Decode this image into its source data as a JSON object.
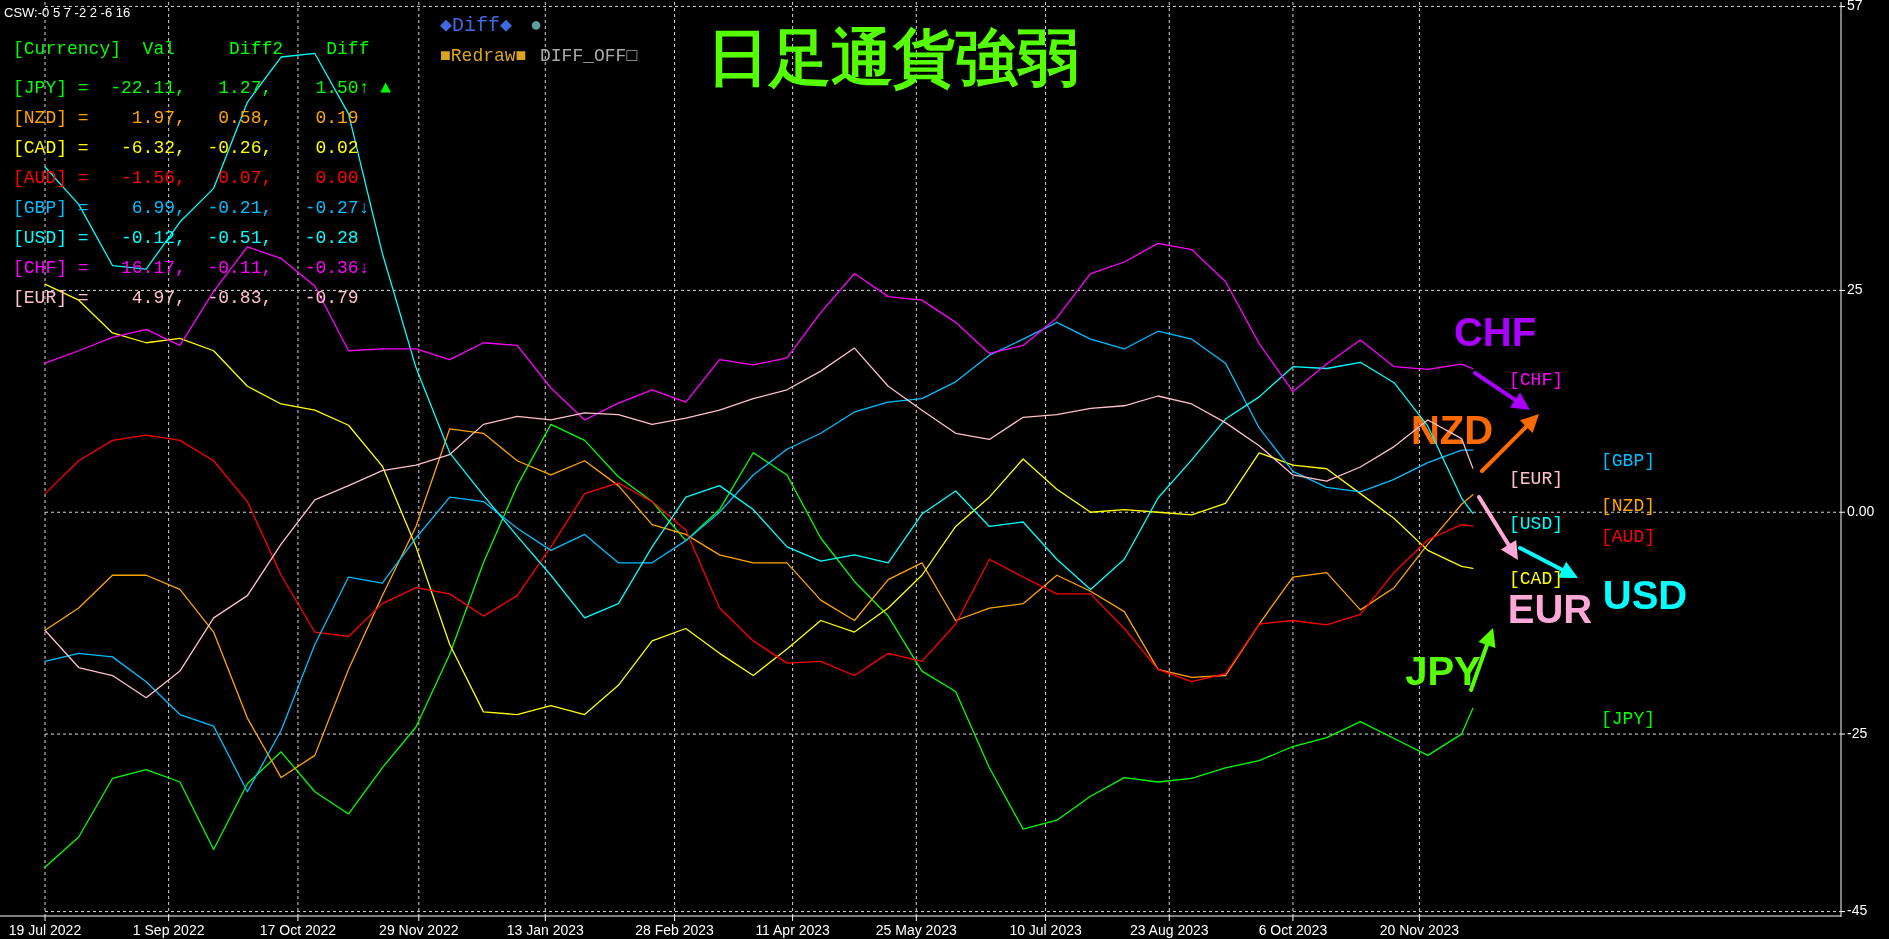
{
  "chart_data": {
    "type": "line",
    "title": "日足通貨強弱",
    "x": [
      "2022-07-19",
      "2022-07-31",
      "2022-08-12",
      "2022-08-24",
      "2022-09-05",
      "2022-09-17",
      "2022-09-29",
      "2022-10-11",
      "2022-10-23",
      "2022-11-04",
      "2022-11-16",
      "2022-11-28",
      "2022-12-10",
      "2022-12-22",
      "2023-01-03",
      "2023-01-15",
      "2023-01-27",
      "2023-02-08",
      "2023-02-20",
      "2023-03-04",
      "2023-03-16",
      "2023-03-28",
      "2023-04-09",
      "2023-04-21",
      "2023-05-03",
      "2023-05-15",
      "2023-05-27",
      "2023-06-08",
      "2023-06-20",
      "2023-07-02",
      "2023-07-14",
      "2023-07-26",
      "2023-08-07",
      "2023-08-19",
      "2023-08-31",
      "2023-09-12",
      "2023-09-24",
      "2023-10-06",
      "2023-10-18",
      "2023-10-30",
      "2023-11-11",
      "2023-11-23",
      "2023-12-05",
      "2023-12-09"
    ],
    "series": [
      {
        "name": "[JPY]",
        "color": "#00ff00",
        "values": [
          -40,
          -36.6,
          -30,
          -29,
          -30.4,
          -38,
          -30.6,
          -27,
          -31.5,
          -34,
          -28.8,
          -24.2,
          -16,
          -5.7,
          3,
          9.9,
          8.1,
          4,
          1.2,
          -3.2,
          0.3,
          6.7,
          4.2,
          -2.9,
          -7.8,
          -11.7,
          -17.9,
          -20.2,
          -28.8,
          -35.7,
          -34.7,
          -32,
          -29.9,
          -30.4,
          -30,
          -28.8,
          -28,
          -26.4,
          -25.4,
          -23.6,
          -25.5,
          -27.4,
          -25,
          -22.11
        ]
      },
      {
        "name": "[NZD]",
        "color": "#ffa500",
        "values": [
          -13.3,
          -10.8,
          -7.1,
          -7.1,
          -8.7,
          -13.5,
          -23.2,
          -29.9,
          -27.4,
          -17.7,
          -9.4,
          -1.6,
          9.4,
          8.9,
          5.8,
          4.2,
          5.8,
          3,
          -1.4,
          -2.5,
          -4.8,
          -5.7,
          -5.7,
          -9.9,
          -12.2,
          -7.6,
          -5.7,
          -12.2,
          -10.8,
          -10.3,
          -7.1,
          -8.9,
          -11.2,
          -17.7,
          -18.6,
          -18.4,
          -12.6,
          -7.3,
          -6.8,
          -11,
          -8.5,
          -3.6,
          0.9,
          1.97
        ]
      },
      {
        "name": "[CAD]",
        "color": "#ffff00",
        "values": [
          25.7,
          23.9,
          20.2,
          19.1,
          19.6,
          18.2,
          14.2,
          12.2,
          11.5,
          9.8,
          5.2,
          -3.9,
          -14.9,
          -22.5,
          -22.8,
          -21.8,
          -22.8,
          -19.5,
          -14.5,
          -13.1,
          -15.9,
          -18.4,
          -15.4,
          -12.2,
          -13.5,
          -10.8,
          -7.1,
          -1.6,
          1.7,
          6,
          2.6,
          0,
          0.3,
          0,
          -0.3,
          1,
          6.7,
          5.3,
          4.9,
          2.1,
          -0.7,
          -4.3,
          -6.1,
          -6.32
        ]
      },
      {
        "name": "[AUD]",
        "color": "#ff0000",
        "values": [
          2.1,
          5.8,
          8.1,
          8.7,
          8.1,
          5.8,
          1.2,
          -7.1,
          -13.5,
          -14,
          -10.3,
          -8.5,
          -9.2,
          -11.7,
          -9.4,
          -3.9,
          2.1,
          3.3,
          1.2,
          -2,
          -10.8,
          -14.5,
          -17,
          -16.8,
          -18.4,
          -15.9,
          -16.8,
          -12.6,
          -5.3,
          -7.3,
          -9.2,
          -9.2,
          -13.1,
          -17.7,
          -19.1,
          -18.2,
          -12.6,
          -12.2,
          -12.7,
          -11.5,
          -6.8,
          -3.1,
          -1.4,
          -1.56
        ]
      },
      {
        "name": "[GBP]",
        "color": "#00bfff",
        "values": [
          -16.8,
          -15.9,
          -16.3,
          -19.1,
          -22.8,
          -24.1,
          -31.5,
          -24.6,
          -14.9,
          -7.3,
          -8,
          -2.9,
          1.7,
          1.2,
          -1.8,
          -4.3,
          -2.5,
          -5.7,
          -5.7,
          -3.2,
          0,
          4.2,
          7.1,
          8.9,
          11.3,
          12.4,
          12.8,
          14.7,
          17.7,
          19.5,
          21.4,
          19.5,
          18.4,
          20.4,
          19.5,
          16.8,
          9.5,
          4.6,
          2.8,
          2.3,
          3.7,
          5.6,
          7,
          6.99
        ]
      },
      {
        "name": "[USD]",
        "color": "#00ffff",
        "values": [
          38.9,
          34.7,
          27.8,
          27.4,
          32.7,
          36.5,
          46.2,
          51.3,
          51.7,
          44.9,
          29.2,
          16.3,
          6.7,
          1.9,
          -2.7,
          -7.1,
          -11.9,
          -10.3,
          -3.9,
          1.7,
          3,
          0.3,
          -3.9,
          -5.5,
          -4.8,
          -5.7,
          -0.2,
          2.4,
          -1.6,
          -1.1,
          -5.3,
          -8.7,
          -5.3,
          1.6,
          5.9,
          10.5,
          13,
          16.4,
          16.2,
          16.9,
          14.6,
          9.7,
          1.6,
          -0.12
        ]
      },
      {
        "name": "[CHF]",
        "color": "#ff00ff",
        "values": [
          16.8,
          18.2,
          19.7,
          20.6,
          18.8,
          24.9,
          29.9,
          28.6,
          25.5,
          18.2,
          18.4,
          18.4,
          17.2,
          19.1,
          18.8,
          14,
          10.4,
          12.3,
          13.8,
          12.4,
          17.2,
          16.6,
          17.4,
          22.5,
          26.9,
          24.3,
          23.9,
          21.4,
          17.9,
          18.8,
          21.9,
          26.9,
          28.2,
          30.3,
          29.6,
          26,
          19,
          13.6,
          16.7,
          19.4,
          16.4,
          16.1,
          16.7,
          16.17
        ]
      },
      {
        "name": "[EUR]",
        "color": "#ffc0cb",
        "values": [
          -13.3,
          -17.5,
          -18.4,
          -20.9,
          -17.9,
          -11.9,
          -9.4,
          -3.6,
          1.4,
          3,
          4.7,
          5.3,
          6.5,
          9.9,
          10.8,
          10.4,
          11.2,
          11,
          9.9,
          10.6,
          11.5,
          12.8,
          13.8,
          15.9,
          18.5,
          14.2,
          11.5,
          8.9,
          8.2,
          10.7,
          11,
          11.7,
          12,
          13.1,
          12.2,
          10.1,
          7.5,
          4.2,
          3.5,
          5.1,
          7.4,
          10.4,
          8.3,
          4.97
        ]
      }
    ],
    "xlim": [
      "2022-07-19",
      "2024-04-18"
    ],
    "xticks": [
      {
        "value": "2022-07-19",
        "label": "19 Jul 2022"
      },
      {
        "value": "2022-09-01",
        "label": "1 Sep 2022"
      },
      {
        "value": "2022-10-17",
        "label": "17 Oct 2022"
      },
      {
        "value": "2022-11-29",
        "label": "29 Nov 2022"
      },
      {
        "value": "2023-01-13",
        "label": "13 Jan 2023"
      },
      {
        "value": "2023-02-28",
        "label": "28 Feb 2023"
      },
      {
        "value": "2023-04-11",
        "label": "11 Apr 2023"
      },
      {
        "value": "2023-05-25",
        "label": "25 May 2023"
      },
      {
        "value": "2023-07-10",
        "label": "10 Jul 2023"
      },
      {
        "value": "2023-08-23",
        "label": "23 Aug 2023"
      },
      {
        "value": "2023-10-06",
        "label": "6 Oct 2023"
      },
      {
        "value": "2023-11-20",
        "label": "20 Nov 2023"
      }
    ],
    "ylim": [
      -45.5,
      57.5
    ],
    "yticks": [
      57,
      25,
      {
        "value": 0,
        "label": "0.00"
      },
      -25,
      -45
    ],
    "grid": true,
    "annotations": [
      "CSW:-0 5 7 -2 2 -6 16",
      "[Currency]  Val     Diff2    Diff",
      "[JPY] =  -22.11,   1.27,    1.50↑ ▲",
      "[NZD] =    1.97,   0.58,    0.19",
      "[CAD] =   -6.32,  -0.26,    0.02",
      "[AUD] =   -1.56,   0.07,    0.00",
      "[GBP] =    6.99,  -0.21,   -0.27↓",
      "[USD] =   -0.12,  -0.51,   -0.28",
      "[CHF] =   16.17,  -0.11,   -0.36↓",
      "[EUR] =    4.97,  -0.83,   -0.79",
      "◆Diff◆",
      "●",
      "■Redraw■",
      "DIFF_OFF□",
      "CHF",
      "NZD",
      "EUR",
      "USD",
      "JPY"
    ]
  }
}
